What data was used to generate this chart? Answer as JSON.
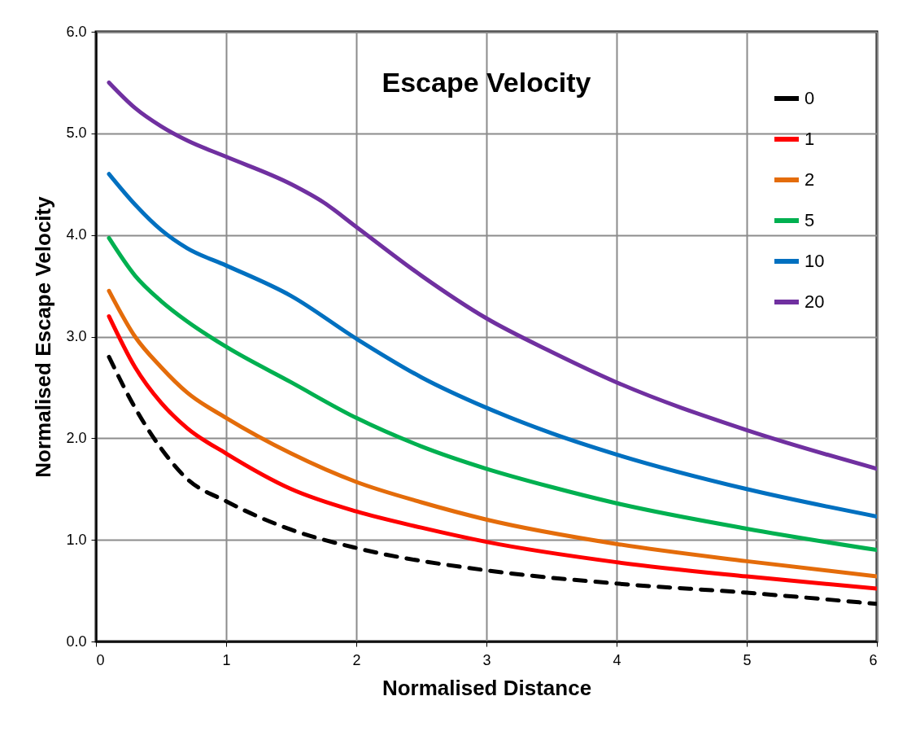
{
  "chart_data": {
    "type": "line",
    "title": "Escape  Velocity",
    "xlabel": "Normalised  Distance",
    "ylabel": "Normalised  Escape  Velocity",
    "xlim": [
      0,
      6
    ],
    "xticks": [
      0,
      1,
      2,
      3,
      4,
      5,
      6
    ],
    "ylim": [
      0,
      6
    ],
    "yticks": [
      {
        "value": 0,
        "label": "0.0"
      },
      {
        "value": 1,
        "label": "1.0"
      },
      {
        "value": 2,
        "label": "2.0"
      },
      {
        "value": 3,
        "label": "3.0"
      },
      {
        "value": 4,
        "label": "4.0"
      },
      {
        "value": 5,
        "label": "5.0"
      },
      {
        "value": 6,
        "label": "6.0"
      }
    ],
    "grid": true,
    "legend": "top right",
    "marker": "none",
    "line_style": "solid",
    "series": [
      {
        "name": "0",
        "color": "#000000",
        "line_style": "dashed",
        "x": [
          0.1,
          0.3,
          0.5,
          0.7,
          1,
          1.5,
          2,
          3,
          4,
          5,
          6
        ],
        "values": [
          2.8,
          2.3,
          1.9,
          1.6,
          1.38,
          1.1,
          0.92,
          0.7,
          0.57,
          0.48,
          0.37
        ]
      },
      {
        "name": "1",
        "color": "#ff0000",
        "x": [
          0.1,
          0.3,
          0.5,
          0.7,
          1,
          1.5,
          2,
          2.5,
          3,
          4,
          5,
          6
        ],
        "values": [
          3.2,
          2.7,
          2.35,
          2.1,
          1.85,
          1.5,
          1.28,
          1.12,
          0.98,
          0.78,
          0.64,
          0.52
        ]
      },
      {
        "name": "2",
        "color": "#e46c0a",
        "x": [
          0.1,
          0.3,
          0.5,
          0.7,
          1,
          1.5,
          2,
          2.5,
          3,
          4,
          5,
          6
        ],
        "values": [
          3.45,
          3.0,
          2.7,
          2.45,
          2.2,
          1.85,
          1.57,
          1.37,
          1.2,
          0.96,
          0.79,
          0.64
        ]
      },
      {
        "name": "5",
        "color": "#00b050",
        "x": [
          0.1,
          0.3,
          0.5,
          0.7,
          1,
          1.5,
          2,
          2.5,
          3,
          3.5,
          4,
          5,
          6
        ],
        "values": [
          3.97,
          3.6,
          3.35,
          3.15,
          2.9,
          2.55,
          2.2,
          1.92,
          1.7,
          1.52,
          1.36,
          1.11,
          0.9
        ]
      },
      {
        "name": "10",
        "color": "#0070c0",
        "x": [
          0.1,
          0.3,
          0.5,
          0.7,
          1,
          1.5,
          2,
          2.5,
          3,
          3.5,
          4,
          5,
          6
        ],
        "values": [
          4.6,
          4.3,
          4.05,
          3.87,
          3.7,
          3.4,
          2.98,
          2.6,
          2.3,
          2.05,
          1.84,
          1.5,
          1.23
        ]
      },
      {
        "name": "20",
        "color": "#7030a0",
        "x": [
          0.1,
          0.3,
          0.5,
          0.7,
          1,
          1.5,
          1.75,
          2,
          2.5,
          3,
          3.5,
          4,
          5,
          6
        ],
        "values": [
          5.5,
          5.25,
          5.07,
          4.93,
          4.77,
          4.5,
          4.32,
          4.08,
          3.6,
          3.18,
          2.85,
          2.55,
          2.08,
          1.7
        ]
      }
    ]
  }
}
